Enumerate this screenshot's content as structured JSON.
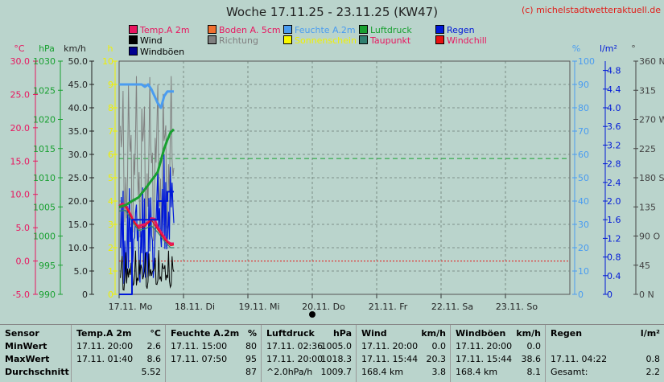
{
  "title": "Woche 17.11.25 - 23.11.25 (KW47)",
  "copyright": "(c) michelstadtwetteraktuell.de",
  "legend": [
    {
      "label": "Temp.A 2m",
      "color": "#e8165f",
      "text_color": "#e8165f"
    },
    {
      "label": "Boden A. 5cm",
      "color": "#f07030",
      "text_color": "#e8165f"
    },
    {
      "label": "Feuchte A.2m",
      "color": "#4a9cf0",
      "text_color": "#4a9cf0"
    },
    {
      "label": "Luftdruck",
      "color": "#18a030",
      "text_color": "#18a030"
    },
    {
      "label": "Regen",
      "color": "#0018d8",
      "text_color": "#0018d8"
    },
    {
      "label": "Wind",
      "color": "#000000",
      "text_color": "#000000"
    },
    {
      "label": "Richtung",
      "color": "#808080",
      "text_color": "#808080"
    },
    {
      "label": "Sonnenschein",
      "color": "#f8f800",
      "text_color": "#f0f000"
    },
    {
      "label": "Taupunkt",
      "color": "#308070",
      "text_color": "#e8165f"
    },
    {
      "label": "Windchill",
      "color": "#e81010",
      "text_color": "#e8165f"
    },
    {
      "label": "Windböen",
      "color": "#000090",
      "text_color": "#000000"
    }
  ],
  "chart_data": {
    "type": "line",
    "x_ticks": [
      "17.11. Mo",
      "18.11. Di",
      "19.11. Mi",
      "20.11. Do",
      "21.11. Fr",
      "22.11. Sa",
      "23.11. So"
    ],
    "axes": {
      "temp": {
        "unit": "°C",
        "min": -5,
        "max": 30,
        "ticks": [
          "30.0",
          "25.0",
          "20.0",
          "15.0",
          "10.0",
          "5.0",
          "0.0",
          "-5.0"
        ],
        "color": "#e8165f"
      },
      "pressure": {
        "unit": "hPa",
        "min": 990,
        "max": 1030,
        "ticks": [
          "1030",
          "1025",
          "1020",
          "1015",
          "1010",
          "1005",
          "1000",
          "995",
          "990"
        ],
        "color": "#18a030"
      },
      "wind": {
        "unit": "km/h",
        "min": 0,
        "max": 50,
        "ticks": [
          "50.0",
          "45.0",
          "40.0",
          "35.0",
          "30.0",
          "25.0",
          "20.0",
          "15.0",
          "10.0",
          "5.0",
          "0"
        ],
        "color": "#222222"
      },
      "sun": {
        "unit": "h",
        "min": 0,
        "max": 10,
        "ticks": [
          "10",
          "9",
          "8",
          "7",
          "6",
          "5",
          "4",
          "3",
          "2",
          "1",
          "0"
        ],
        "color": "#f0f000"
      },
      "humidity": {
        "unit": "%",
        "min": 0,
        "max": 100,
        "ticks": [
          "100",
          "90",
          "80",
          "70",
          "60",
          "50",
          "40",
          "30",
          "20",
          "10",
          "0"
        ],
        "color": "#4a9cf0"
      },
      "rain": {
        "unit": "l/m²",
        "min": 0,
        "max": 5,
        "ticks": [
          "4.8",
          "4.4",
          "4.0",
          "3.6",
          "3.2",
          "2.8",
          "2.4",
          "2.0",
          "1.6",
          "1.2",
          "0.8",
          "0.4",
          "0"
        ],
        "color": "#0018d8"
      },
      "direction": {
        "unit": "°",
        "min": 0,
        "max": 360,
        "ticks": [
          "360 N",
          "315",
          "270 W",
          "225",
          "180 S",
          "135",
          "90 O",
          "45",
          "0 N"
        ],
        "color": "#444444"
      }
    },
    "series": [
      {
        "name": "Temp.A 2m",
        "axis": "temp",
        "color": "#e8165f",
        "x": [
          0,
          0.05,
          0.1,
          0.15,
          0.2,
          0.25,
          0.3,
          0.35,
          0.4,
          0.45,
          0.5,
          0.55,
          0.6,
          0.65,
          0.7,
          0.75,
          0.8,
          0.85
        ],
        "y": [
          8.2,
          8.6,
          8.3,
          7.5,
          6.5,
          5.6,
          5.2,
          5.4,
          5.5,
          5.8,
          6.4,
          6.3,
          5.0,
          4.3,
          3.6,
          2.9,
          2.6,
          2.6
        ]
      },
      {
        "name": "Taupunkt",
        "axis": "temp",
        "color": "#308070",
        "x": [
          0,
          0.1,
          0.2,
          0.3,
          0.4,
          0.5,
          0.6,
          0.7,
          0.8,
          0.85
        ],
        "y": [
          7.5,
          7.6,
          6.0,
          4.6,
          4.8,
          5.3,
          4.3,
          3.0,
          2.0,
          2.0
        ]
      },
      {
        "name": "Windchill",
        "axis": "temp",
        "color": "#e81010",
        "x": [
          0,
          0.1,
          0.2,
          0.3,
          0.4,
          0.5,
          0.6,
          0.7,
          0.8,
          0.85
        ],
        "y": [
          8.0,
          8.2,
          6.4,
          4.9,
          5.2,
          6.2,
          4.7,
          3.3,
          2.3,
          2.4
        ]
      },
      {
        "name": "Feuchte A.2m",
        "axis": "humidity",
        "color": "#4a9cf0",
        "x": [
          0,
          0.1,
          0.2,
          0.3,
          0.35,
          0.4,
          0.45,
          0.5,
          0.55,
          0.6,
          0.65,
          0.7,
          0.75,
          0.8,
          0.85
        ],
        "y": [
          90,
          90,
          90,
          90,
          90,
          89,
          90,
          88,
          85,
          82,
          80,
          85,
          87,
          87,
          87
        ]
      },
      {
        "name": "Luftdruck",
        "axis": "pressure",
        "color": "#18a030",
        "x": [
          0,
          0.1,
          0.2,
          0.3,
          0.4,
          0.5,
          0.55,
          0.6,
          0.65,
          0.7,
          0.75,
          0.8,
          0.85
        ],
        "y": [
          1005.0,
          1005.3,
          1006.0,
          1006.6,
          1008.0,
          1009.5,
          1010.2,
          1011.0,
          1013.0,
          1015.0,
          1016.5,
          1017.8,
          1018.3
        ]
      },
      {
        "name": "Regen",
        "axis": "rain",
        "color": "#0018d8",
        "step": true,
        "x": [
          0,
          0.2,
          0.3,
          0.45,
          0.6,
          0.75,
          0.85
        ],
        "y": [
          0,
          1.6,
          1.6,
          1.6,
          2.0,
          2.2,
          2.2
        ]
      }
    ],
    "wind_peak_kmh": 38.6,
    "reference_lines": [
      {
        "axis": "pressure",
        "value": 1013.3,
        "color": "#18a030",
        "style": "dashed"
      },
      {
        "axis": "temp",
        "value": 0,
        "color": "#e81010",
        "style": "dotted"
      }
    ]
  },
  "table": {
    "row_labels": [
      "Sensor",
      "MinWert",
      "MaxWert",
      "Durchschnitt"
    ],
    "columns": [
      {
        "header": "Temp.A 2m",
        "unit": "°C",
        "rows": [
          [
            "17.11.  20:00",
            "2.6"
          ],
          [
            "17.11.  01:40",
            "8.6"
          ],
          [
            "",
            "5.52"
          ]
        ]
      },
      {
        "header": "Feuchte A.2m",
        "unit": "%",
        "rows": [
          [
            "17.11.  15:00",
            "80"
          ],
          [
            "17.11.  07:50",
            "95"
          ],
          [
            "",
            "87"
          ]
        ]
      },
      {
        "header": "Luftdruck",
        "unit": "hPa",
        "rows": [
          [
            "17.11.  02:36",
            "1005.0"
          ],
          [
            "17.11.  20:00",
            "1018.3"
          ],
          [
            "^2.0hPa/h",
            "1009.7"
          ]
        ]
      },
      {
        "header": "Wind",
        "unit": "km/h",
        "rows": [
          [
            "17.11.  20:00",
            "0.0"
          ],
          [
            "17.11.  15:44",
            "20.3"
          ],
          [
            "168.4 km",
            "3.8"
          ]
        ]
      },
      {
        "header": "Windböen",
        "unit": "km/h",
        "rows": [
          [
            "17.11.  20:00",
            "0.0"
          ],
          [
            "17.11.  15:44",
            "38.6"
          ],
          [
            "168.4 km",
            "8.1"
          ]
        ]
      },
      {
        "header": "Regen",
        "unit": "l/m²",
        "rows": [
          [
            "",
            ""
          ],
          [
            "17.11.  04:22",
            "0.8"
          ],
          [
            "Gesamt:",
            "2.2"
          ]
        ]
      }
    ]
  }
}
